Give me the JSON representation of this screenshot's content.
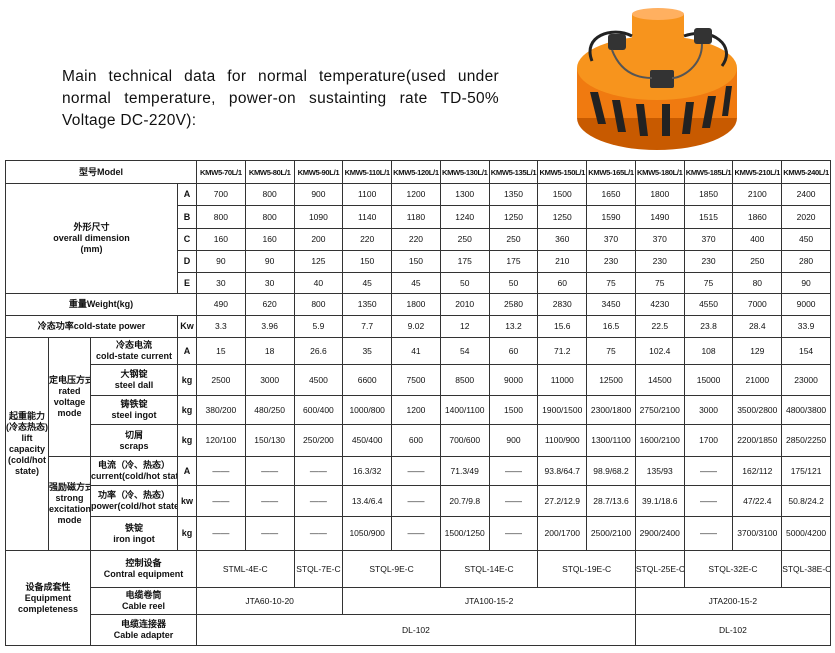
{
  "intro": "Main technical data for normal temperature(used under normal temperature, power-on sustainting rate TD-50% Voltage DC-220V):",
  "table": {
    "model_label": "型号Model",
    "models": [
      "KMW5-70L/1",
      "KMW5-80L/1",
      "KMW5-90L/1",
      "KMW5-110L/1",
      "KMW5-120L/1",
      "KMW5-130L/1",
      "KMW5-135L/1",
      "KMW5-150L/1",
      "KMW5-165L/1",
      "KMW5-180L/1",
      "KMW5-185L/1",
      "KMW5-210L/1",
      "KMW5-240L/1"
    ],
    "dimension": {
      "label": [
        "外形尺寸",
        "overall dimension",
        "(mm)"
      ],
      "rows": [
        {
          "key": "A",
          "values": [
            700,
            800,
            900,
            1100,
            1200,
            1300,
            1350,
            1500,
            1650,
            1800,
            1850,
            2100,
            2400
          ]
        },
        {
          "key": "B",
          "values": [
            800,
            800,
            1090,
            1140,
            1180,
            1240,
            1250,
            1250,
            1590,
            1490,
            1515,
            1860,
            2020
          ]
        },
        {
          "key": "C",
          "values": [
            160,
            160,
            200,
            220,
            220,
            250,
            250,
            360,
            370,
            370,
            370,
            400,
            450
          ]
        },
        {
          "key": "D",
          "values": [
            90,
            90,
            125,
            150,
            150,
            175,
            175,
            210,
            230,
            230,
            230,
            250,
            280
          ]
        },
        {
          "key": "E",
          "values": [
            30,
            30,
            40,
            45,
            45,
            50,
            50,
            60,
            75,
            75,
            75,
            80,
            90
          ]
        }
      ]
    },
    "weight": {
      "label": "重量Weight(kg)",
      "values": [
        490,
        620,
        800,
        1350,
        1800,
        2010,
        2580,
        2830,
        3450,
        4230,
        4550,
        7000,
        9000
      ]
    },
    "cold_power": {
      "label": "冷态功率cold-state power",
      "unit": "Kw",
      "values": [
        3.3,
        3.96,
        5.9,
        7.7,
        9.02,
        12,
        13.2,
        15.6,
        16.5,
        22.5,
        23.8,
        28.4,
        33.9
      ]
    },
    "lift_capacity": {
      "label": [
        "起重能力",
        "(冷态热态)",
        "lift",
        "capacity",
        "(cold/hot",
        "state)"
      ],
      "modes": [
        {
          "label": [
            "定电压方式",
            "rated",
            "voltage",
            "mode"
          ],
          "rows": [
            {
              "label": [
                "冷态电流",
                "cold-state current"
              ],
              "unit": "A",
              "values": [
                15,
                18,
                26.6,
                35,
                41,
                54,
                60,
                71.2,
                75,
                102.4,
                108,
                129,
                154
              ]
            },
            {
              "label": [
                "大钢锭",
                "steel dall"
              ],
              "unit": "kg",
              "values": [
                2500,
                3000,
                4500,
                6600,
                7500,
                8500,
                9000,
                11000,
                12500,
                14500,
                15000,
                21000,
                23000
              ]
            },
            {
              "label": [
                "铸铁锭",
                "steel ingot"
              ],
              "unit": "kg",
              "values": [
                "380/200",
                "480/250",
                "600/400",
                "1000/800",
                1200,
                "1400/1100",
                1500,
                "1900/1500",
                "2300/1800",
                "2750/2100",
                3000,
                "3500/2800",
                "4800/3800"
              ]
            },
            {
              "label": [
                "切屑",
                "scraps"
              ],
              "unit": "kg",
              "values": [
                "120/100",
                "150/130",
                "250/200",
                "450/400",
                600,
                "700/600",
                900,
                "1100/900",
                "1300/1100",
                "1600/2100",
                1700,
                "2200/1850",
                "2850/2250"
              ]
            }
          ]
        },
        {
          "label": [
            "强励磁方式",
            "strong",
            "excitation",
            "mode"
          ],
          "rows": [
            {
              "label": [
                "电流（冷、热态）",
                "current(cold/hot state)"
              ],
              "unit": "A",
              "values": [
                "——",
                "——",
                "——",
                "16.3/32",
                "——",
                "71.3/49",
                "——",
                "93.8/64.7",
                "98.9/68.2",
                "135/93",
                "——",
                "162/112",
                "175/121"
              ]
            },
            {
              "label": [
                "功率（冷、热态）",
                "power(cold/hot state)"
              ],
              "unit": "kw",
              "values": [
                "——",
                "——",
                "——",
                "13.4/6.4",
                "——",
                "20.7/9.8",
                "——",
                "27.2/12.9",
                "28.7/13.6",
                "39.1/18.6",
                "——",
                "47/22.4",
                "50.8/24.2"
              ]
            },
            {
              "label": [
                "铁锭",
                "iron ingot"
              ],
              "unit": "kg",
              "values": [
                "——",
                "——",
                "——",
                "1050/900",
                "——",
                "1500/1250",
                "——",
                "200/1700",
                "2500/2100",
                "2900/2400",
                "——",
                "3700/3100",
                "5000/4200"
              ]
            }
          ]
        }
      ]
    },
    "equipment": {
      "label": [
        "设备成套性",
        "Equipment",
        "completeness"
      ],
      "rows": [
        {
          "label": [
            "控制设备",
            "Contral equipment"
          ],
          "cells": [
            "STML-4E-C",
            null,
            "STQL-7E-C",
            "STQL-9E-C",
            null,
            "STQL-14E-C",
            null,
            "STQL-19E-C",
            null,
            "STQL-25E-C",
            "STQL-32E-C",
            null,
            "STQL-38E-C"
          ]
        },
        {
          "label": [
            "电缆卷筒",
            "Cable reel"
          ],
          "cells": [
            "JTA60-10-20",
            null,
            null,
            "JTA100-15-2",
            null,
            null,
            null,
            null,
            null,
            "JTA200-15-2",
            null,
            null,
            null
          ]
        },
        {
          "label": [
            "电缆连接器",
            "Cable adapter"
          ],
          "cells": [
            "DL-102",
            null,
            null,
            null,
            null,
            null,
            null,
            null,
            null,
            "DL-102",
            null,
            null,
            null
          ]
        }
      ]
    }
  }
}
